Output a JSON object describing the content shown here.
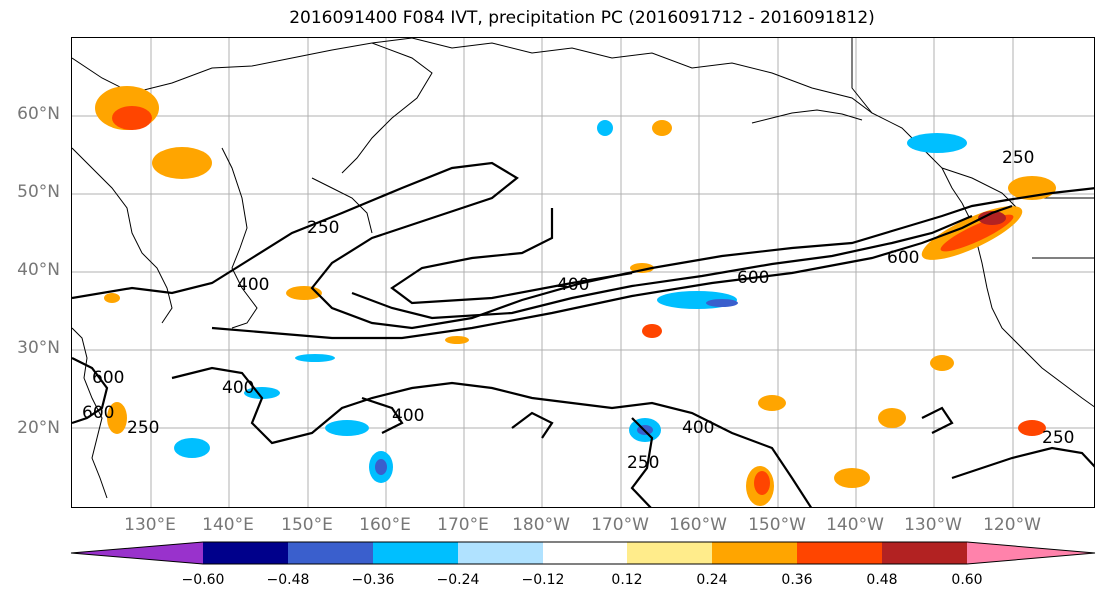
{
  "title": "2016091400 F084 IVT, precipitation PC (2016091712 - 2016091812)",
  "lat_labels": [
    "60°N",
    "50°N",
    "40°N",
    "30°N",
    "20°N"
  ],
  "lon_labels": [
    "130°E",
    "140°E",
    "150°E",
    "160°E",
    "170°E",
    "180°W",
    "170°W",
    "160°W",
    "150°W",
    "140°W",
    "130°W",
    "120°W"
  ],
  "contour_labels": [
    "250",
    "400",
    "400",
    "600",
    "600",
    "250",
    "400",
    "400",
    "250",
    "400",
    "600",
    "600",
    "250",
    "250"
  ],
  "colorbar": {
    "ticks": [
      "−0.60",
      "−0.48",
      "−0.36",
      "−0.24",
      "−0.12",
      "0.12",
      "0.24",
      "0.36",
      "0.48",
      "0.60"
    ],
    "colors": [
      "#9932cc",
      "#00008b",
      "#3a5fcd",
      "#00bfff",
      "#b0e2ff",
      "#ffffff",
      "#ffec8b",
      "#ffa500",
      "#ff4500",
      "#b22222",
      "#ff82ab"
    ]
  }
}
